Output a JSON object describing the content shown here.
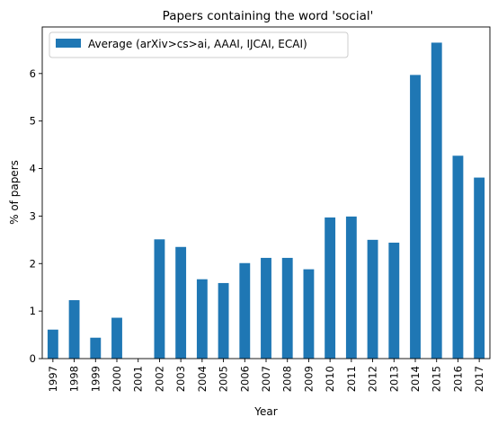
{
  "chart_data": {
    "type": "bar",
    "title": "Papers containing the word 'social'",
    "xlabel": "Year",
    "ylabel": "% of papers",
    "categories": [
      "1997",
      "1998",
      "1999",
      "2000",
      "2001",
      "2002",
      "2003",
      "2004",
      "2005",
      "2006",
      "2007",
      "2008",
      "2009",
      "2010",
      "2011",
      "2012",
      "2013",
      "2014",
      "2015",
      "2016",
      "2017"
    ],
    "series": [
      {
        "name": "Average (arXiv>cs>ai, AAAI, IJCAI, ECAI)",
        "values": [
          0.61,
          1.23,
          0.44,
          0.86,
          0.0,
          2.51,
          2.35,
          1.67,
          1.59,
          2.01,
          2.12,
          2.12,
          1.88,
          2.97,
          2.99,
          2.5,
          2.44,
          5.97,
          6.65,
          4.27,
          3.81
        ],
        "color": "#1f77b4"
      }
    ],
    "yticks": [
      0,
      1,
      2,
      3,
      4,
      5,
      6
    ],
    "ylim": [
      0,
      6.98
    ],
    "grid": false,
    "legend_position": "top-left"
  }
}
